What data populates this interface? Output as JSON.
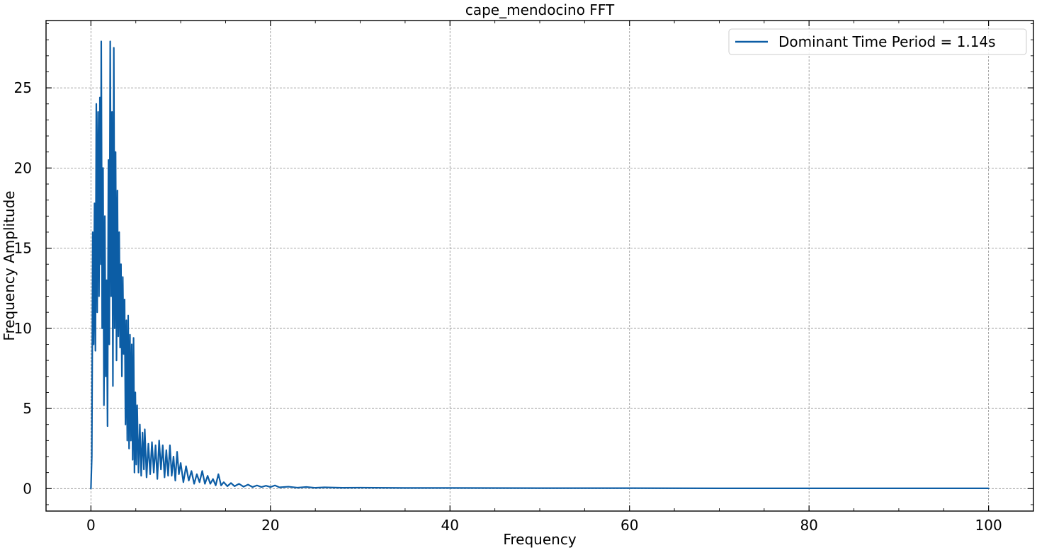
{
  "chart_data": {
    "type": "line",
    "title": "cape_mendocino FFT",
    "xlabel": "Frequency",
    "ylabel": "Frequency Amplitude",
    "xlim": [
      -5,
      105
    ],
    "ylim": [
      -1.4,
      29.2
    ],
    "xticks": [
      0,
      20,
      40,
      60,
      80,
      100
    ],
    "yticks": [
      0,
      5,
      10,
      15,
      20,
      25
    ],
    "xtick_labels": [
      "0",
      "20",
      "40",
      "60",
      "80",
      "100"
    ],
    "ytick_labels": [
      "0",
      "5",
      "10",
      "15",
      "20",
      "25"
    ],
    "x_minor_step": 5,
    "y_minor_step": 1,
    "grid": true,
    "legend_position": "top-right",
    "series": [
      {
        "name": "Dominant Time Period = 1.14s",
        "color": "#0c5da5",
        "points": [
          [
            0.0,
            0.0
          ],
          [
            0.1,
            2.0
          ],
          [
            0.15,
            8.5
          ],
          [
            0.2,
            16.0
          ],
          [
            0.3,
            9.0
          ],
          [
            0.4,
            17.8
          ],
          [
            0.5,
            8.6
          ],
          [
            0.6,
            24.0
          ],
          [
            0.7,
            11.0
          ],
          [
            0.8,
            23.5
          ],
          [
            0.9,
            12.0
          ],
          [
            1.0,
            24.4
          ],
          [
            1.1,
            14.0
          ],
          [
            1.15,
            27.9
          ],
          [
            1.25,
            10.0
          ],
          [
            1.35,
            20.0
          ],
          [
            1.45,
            5.2
          ],
          [
            1.55,
            17.0
          ],
          [
            1.65,
            7.0
          ],
          [
            1.75,
            13.0
          ],
          [
            1.85,
            3.9
          ],
          [
            1.95,
            20.5
          ],
          [
            2.05,
            9.0
          ],
          [
            2.15,
            27.9
          ],
          [
            2.25,
            12.0
          ],
          [
            2.35,
            23.5
          ],
          [
            2.45,
            6.4
          ],
          [
            2.55,
            27.5
          ],
          [
            2.65,
            10.0
          ],
          [
            2.75,
            21.0
          ],
          [
            2.85,
            8.0
          ],
          [
            2.95,
            18.6
          ],
          [
            3.05,
            9.5
          ],
          [
            3.15,
            16.0
          ],
          [
            3.25,
            8.8
          ],
          [
            3.35,
            14.0
          ],
          [
            3.45,
            7.0
          ],
          [
            3.55,
            13.2
          ],
          [
            3.65,
            8.4
          ],
          [
            3.75,
            11.8
          ],
          [
            3.85,
            4.0
          ],
          [
            3.95,
            10.5
          ],
          [
            4.05,
            3.0
          ],
          [
            4.15,
            10.8
          ],
          [
            4.25,
            2.5
          ],
          [
            4.35,
            9.6
          ],
          [
            4.45,
            3.0
          ],
          [
            4.55,
            9.0
          ],
          [
            4.65,
            1.8
          ],
          [
            4.75,
            9.4
          ],
          [
            4.85,
            1.0
          ],
          [
            4.95,
            6.0
          ],
          [
            5.05,
            1.5
          ],
          [
            5.15,
            5.2
          ],
          [
            5.3,
            1.0
          ],
          [
            5.45,
            4.0
          ],
          [
            5.6,
            0.8
          ],
          [
            5.75,
            3.5
          ],
          [
            5.9,
            1.2
          ],
          [
            6.0,
            3.7
          ],
          [
            6.2,
            0.7
          ],
          [
            6.4,
            2.8
          ],
          [
            6.6,
            0.9
          ],
          [
            6.8,
            2.9
          ],
          [
            7.0,
            1.0
          ],
          [
            7.2,
            2.7
          ],
          [
            7.4,
            0.6
          ],
          [
            7.6,
            3.0
          ],
          [
            7.8,
            1.2
          ],
          [
            8.0,
            2.7
          ],
          [
            8.2,
            0.7
          ],
          [
            8.4,
            2.4
          ],
          [
            8.6,
            0.8
          ],
          [
            8.8,
            2.7
          ],
          [
            9.0,
            0.8
          ],
          [
            9.2,
            2.0
          ],
          [
            9.4,
            0.5
          ],
          [
            9.6,
            2.3
          ],
          [
            9.8,
            0.9
          ],
          [
            10.0,
            1.6
          ],
          [
            10.3,
            0.4
          ],
          [
            10.6,
            1.4
          ],
          [
            10.9,
            0.5
          ],
          [
            11.2,
            1.1
          ],
          [
            11.5,
            0.3
          ],
          [
            11.8,
            0.9
          ],
          [
            12.1,
            0.4
          ],
          [
            12.4,
            1.1
          ],
          [
            12.7,
            0.3
          ],
          [
            13.0,
            0.8
          ],
          [
            13.3,
            0.3
          ],
          [
            13.6,
            0.6
          ],
          [
            13.9,
            0.2
          ],
          [
            14.2,
            0.9
          ],
          [
            14.5,
            0.2
          ],
          [
            14.8,
            0.4
          ],
          [
            15.2,
            0.15
          ],
          [
            15.6,
            0.35
          ],
          [
            16.0,
            0.15
          ],
          [
            16.5,
            0.3
          ],
          [
            17.0,
            0.12
          ],
          [
            17.5,
            0.25
          ],
          [
            18.0,
            0.1
          ],
          [
            18.5,
            0.2
          ],
          [
            19.0,
            0.1
          ],
          [
            19.5,
            0.18
          ],
          [
            20.0,
            0.1
          ],
          [
            20.5,
            0.2
          ],
          [
            21.0,
            0.08
          ],
          [
            22.0,
            0.12
          ],
          [
            23.0,
            0.06
          ],
          [
            24.0,
            0.1
          ],
          [
            25.0,
            0.05
          ],
          [
            26.0,
            0.08
          ],
          [
            28.0,
            0.05
          ],
          [
            30.0,
            0.06
          ],
          [
            35.0,
            0.04
          ],
          [
            40.0,
            0.04
          ],
          [
            50.0,
            0.03
          ],
          [
            60.0,
            0.03
          ],
          [
            70.0,
            0.02
          ],
          [
            80.0,
            0.02
          ],
          [
            90.0,
            0.02
          ],
          [
            100.0,
            0.02
          ]
        ]
      }
    ]
  }
}
